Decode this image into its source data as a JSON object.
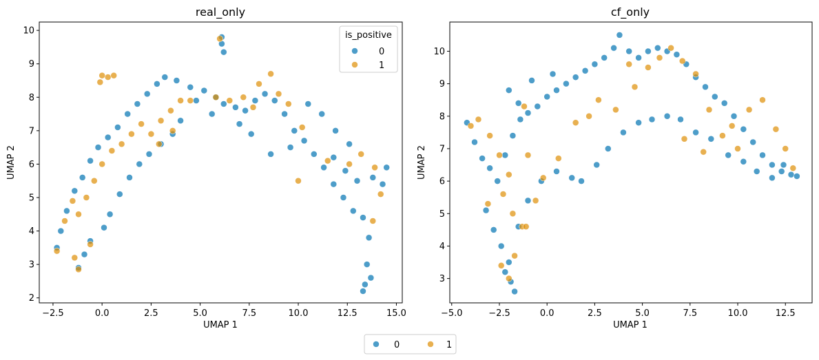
{
  "chart_data": [
    {
      "type": "scatter",
      "title": "real_only",
      "xlabel": "UMAP 1",
      "ylabel": "UMAP 2",
      "xlim": [
        -3.2,
        15.3
      ],
      "ylim": [
        1.85,
        10.25
      ],
      "xticks": [
        -2.5,
        0.0,
        2.5,
        5.0,
        7.5,
        10.0,
        12.5,
        15.0
      ],
      "xtick_labels": [
        "−2.5",
        "0.0",
        "2.5",
        "5.0",
        "7.5",
        "10.0",
        "12.5",
        "15.0"
      ],
      "yticks": [
        2,
        3,
        4,
        5,
        6,
        7,
        8,
        9,
        10
      ],
      "ytick_labels": [
        "2",
        "3",
        "4",
        "5",
        "6",
        "7",
        "8",
        "9",
        "10"
      ],
      "legend": {
        "title": "is_positive",
        "placement": "top-right",
        "entries": [
          "0",
          "1"
        ]
      },
      "series": [
        {
          "name": "0",
          "color": "#0173b2",
          "points": [
            [
              -2.3,
              3.5
            ],
            [
              -2.1,
              4.0
            ],
            [
              -1.8,
              4.6
            ],
            [
              -1.4,
              5.2
            ],
            [
              -1.0,
              5.6
            ],
            [
              -0.6,
              6.1
            ],
            [
              -0.2,
              6.5
            ],
            [
              0.3,
              6.8
            ],
            [
              0.8,
              7.1
            ],
            [
              1.3,
              7.5
            ],
            [
              1.8,
              7.8
            ],
            [
              2.3,
              8.1
            ],
            [
              2.8,
              8.4
            ],
            [
              3.2,
              8.6
            ],
            [
              3.8,
              8.5
            ],
            [
              4.5,
              8.3
            ],
            [
              5.2,
              8.2
            ],
            [
              5.8,
              8.0
            ],
            [
              6.2,
              7.8
            ],
            [
              6.8,
              7.7
            ],
            [
              7.3,
              7.6
            ],
            [
              7.8,
              7.9
            ],
            [
              8.3,
              8.1
            ],
            [
              8.8,
              7.9
            ],
            [
              9.3,
              7.5
            ],
            [
              9.8,
              7.0
            ],
            [
              10.3,
              6.7
            ],
            [
              10.8,
              6.3
            ],
            [
              11.3,
              5.9
            ],
            [
              11.8,
              5.4
            ],
            [
              12.3,
              5.0
            ],
            [
              12.8,
              4.6
            ],
            [
              13.3,
              4.4
            ],
            [
              13.6,
              3.8
            ],
            [
              13.5,
              3.0
            ],
            [
              13.4,
              2.4
            ],
            [
              13.3,
              2.2
            ],
            [
              13.7,
              2.6
            ],
            [
              6.1,
              9.8
            ],
            [
              6.1,
              9.6
            ],
            [
              6.2,
              9.35
            ],
            [
              -1.2,
              2.9
            ],
            [
              -0.9,
              3.3
            ],
            [
              -0.6,
              3.7
            ],
            [
              0.1,
              4.1
            ],
            [
              0.4,
              4.5
            ],
            [
              0.9,
              5.1
            ],
            [
              1.4,
              5.6
            ],
            [
              1.9,
              6.0
            ],
            [
              2.4,
              6.3
            ],
            [
              3.0,
              6.6
            ],
            [
              3.6,
              6.9
            ],
            [
              4.0,
              7.3
            ],
            [
              11.8,
              6.2
            ],
            [
              12.4,
              5.8
            ],
            [
              13.0,
              5.5
            ],
            [
              13.8,
              5.6
            ],
            [
              14.3,
              5.4
            ],
            [
              14.5,
              5.9
            ],
            [
              10.5,
              7.8
            ],
            [
              11.2,
              7.5
            ],
            [
              11.9,
              7.0
            ],
            [
              12.6,
              6.6
            ],
            [
              8.6,
              6.3
            ],
            [
              9.6,
              6.5
            ],
            [
              7.0,
              7.2
            ],
            [
              7.6,
              6.9
            ],
            [
              5.6,
              7.5
            ],
            [
              4.8,
              7.9
            ]
          ]
        },
        {
          "name": "1",
          "color": "#de8f05",
          "points": [
            [
              -2.3,
              3.4
            ],
            [
              -1.9,
              4.3
            ],
            [
              -1.5,
              4.9
            ],
            [
              -1.2,
              4.5
            ],
            [
              -0.8,
              5.0
            ],
            [
              -0.4,
              5.5
            ],
            [
              0.0,
              6.0
            ],
            [
              0.5,
              6.4
            ],
            [
              1.0,
              6.6
            ],
            [
              1.5,
              6.9
            ],
            [
              2.0,
              7.2
            ],
            [
              2.5,
              6.9
            ],
            [
              3.0,
              7.3
            ],
            [
              3.5,
              7.6
            ],
            [
              4.0,
              7.9
            ],
            [
              0.0,
              8.65
            ],
            [
              0.3,
              8.6
            ],
            [
              0.6,
              8.65
            ],
            [
              -0.1,
              8.45
            ],
            [
              6.0,
              9.75
            ],
            [
              5.8,
              8.0
            ],
            [
              6.5,
              7.9
            ],
            [
              7.2,
              8.0
            ],
            [
              8.0,
              8.4
            ],
            [
              8.6,
              8.7
            ],
            [
              9.0,
              8.1
            ],
            [
              10.2,
              7.1
            ],
            [
              10.0,
              5.5
            ],
            [
              11.5,
              6.1
            ],
            [
              12.6,
              6.0
            ],
            [
              13.2,
              6.3
            ],
            [
              13.9,
              5.9
            ],
            [
              14.2,
              5.1
            ],
            [
              13.8,
              4.3
            ],
            [
              -1.4,
              3.2
            ],
            [
              -1.2,
              2.85
            ],
            [
              -0.6,
              3.6
            ],
            [
              2.9,
              6.6
            ],
            [
              3.6,
              7.0
            ],
            [
              4.5,
              7.9
            ],
            [
              7.7,
              7.7
            ],
            [
              9.5,
              7.8
            ]
          ]
        }
      ]
    },
    {
      "type": "scatter",
      "title": "cf_only",
      "xlabel": "UMAP 1",
      "ylabel": "UMAP 2",
      "xlim": [
        -5.1,
        13.9
      ],
      "ylim": [
        2.25,
        10.9
      ],
      "xticks": [
        -5.0,
        -2.5,
        0.0,
        2.5,
        5.0,
        7.5,
        10.0,
        12.5
      ],
      "xtick_labels": [
        "−5.0",
        "−2.5",
        "0.0",
        "2.5",
        "5.0",
        "7.5",
        "10.0",
        "12.5"
      ],
      "yticks": [
        3,
        4,
        5,
        6,
        7,
        8,
        9,
        10
      ],
      "ytick_labels": [
        "3",
        "4",
        "5",
        "6",
        "7",
        "8",
        "9",
        "10"
      ],
      "series": [
        {
          "name": "0",
          "color": "#0173b2",
          "points": [
            [
              -4.2,
              7.8
            ],
            [
              -3.8,
              7.2
            ],
            [
              -3.4,
              6.7
            ],
            [
              -3.0,
              6.4
            ],
            [
              -2.6,
              6.0
            ],
            [
              -2.2,
              6.8
            ],
            [
              -1.8,
              7.4
            ],
            [
              -1.4,
              7.9
            ],
            [
              -1.0,
              8.1
            ],
            [
              -0.5,
              8.3
            ],
            [
              0.0,
              8.6
            ],
            [
              0.5,
              8.8
            ],
            [
              1.0,
              9.0
            ],
            [
              1.5,
              9.2
            ],
            [
              2.0,
              9.4
            ],
            [
              2.5,
              9.6
            ],
            [
              3.0,
              9.8
            ],
            [
              3.5,
              10.1
            ],
            [
              3.8,
              10.5
            ],
            [
              4.3,
              10.0
            ],
            [
              4.8,
              9.8
            ],
            [
              5.3,
              10.0
            ],
            [
              5.8,
              10.1
            ],
            [
              6.3,
              10.0
            ],
            [
              6.8,
              9.9
            ],
            [
              7.3,
              9.6
            ],
            [
              7.8,
              9.2
            ],
            [
              8.3,
              8.9
            ],
            [
              8.8,
              8.6
            ],
            [
              9.3,
              8.4
            ],
            [
              9.8,
              8.0
            ],
            [
              10.3,
              7.6
            ],
            [
              10.8,
              7.2
            ],
            [
              11.3,
              6.8
            ],
            [
              11.8,
              6.5
            ],
            [
              12.3,
              6.3
            ],
            [
              12.8,
              6.2
            ],
            [
              13.1,
              6.15
            ],
            [
              -3.2,
              5.1
            ],
            [
              -2.8,
              4.5
            ],
            [
              -2.4,
              4.0
            ],
            [
              -2.0,
              3.5
            ],
            [
              -1.9,
              2.9
            ],
            [
              -1.7,
              2.6
            ],
            [
              -2.2,
              3.2
            ],
            [
              -1.5,
              4.6
            ],
            [
              -1.0,
              5.4
            ],
            [
              -0.3,
              6.0
            ],
            [
              0.5,
              6.3
            ],
            [
              1.3,
              6.1
            ],
            [
              1.8,
              6.0
            ],
            [
              2.6,
              6.5
            ],
            [
              3.2,
              7.0
            ],
            [
              4.0,
              7.5
            ],
            [
              4.8,
              7.8
            ],
            [
              5.5,
              7.9
            ],
            [
              6.3,
              8.0
            ],
            [
              7.0,
              7.9
            ],
            [
              7.8,
              7.5
            ],
            [
              8.6,
              7.3
            ],
            [
              9.5,
              6.8
            ],
            [
              10.3,
              6.6
            ],
            [
              11.0,
              6.3
            ],
            [
              11.8,
              6.1
            ],
            [
              12.4,
              6.5
            ],
            [
              -2.0,
              8.8
            ],
            [
              -1.5,
              8.4
            ],
            [
              -0.8,
              9.1
            ],
            [
              0.3,
              9.3
            ]
          ]
        },
        {
          "name": "1",
          "color": "#de8f05",
          "points": [
            [
              -4.0,
              7.7
            ],
            [
              -3.6,
              7.9
            ],
            [
              -3.0,
              7.4
            ],
            [
              -2.5,
              6.8
            ],
            [
              -2.0,
              6.2
            ],
            [
              -2.3,
              5.6
            ],
            [
              -1.8,
              5.0
            ],
            [
              -1.3,
              4.6
            ],
            [
              -0.6,
              5.4
            ],
            [
              -0.2,
              6.1
            ],
            [
              -1.0,
              6.8
            ],
            [
              -1.2,
              8.3
            ],
            [
              0.6,
              6.7
            ],
            [
              1.5,
              7.8
            ],
            [
              2.2,
              8.0
            ],
            [
              2.7,
              8.5
            ],
            [
              3.6,
              8.2
            ],
            [
              4.3,
              9.6
            ],
            [
              5.3,
              9.5
            ],
            [
              5.9,
              9.8
            ],
            [
              6.5,
              10.1
            ],
            [
              7.1,
              9.7
            ],
            [
              7.8,
              9.3
            ],
            [
              8.5,
              8.2
            ],
            [
              9.2,
              7.4
            ],
            [
              10.0,
              7.0
            ],
            [
              10.6,
              8.2
            ],
            [
              11.3,
              8.5
            ],
            [
              12.0,
              7.6
            ],
            [
              12.5,
              7.0
            ],
            [
              12.9,
              6.4
            ],
            [
              -2.4,
              3.4
            ],
            [
              -2.0,
              3.0
            ],
            [
              -1.7,
              3.7
            ],
            [
              -3.1,
              5.3
            ],
            [
              -1.1,
              4.6
            ],
            [
              7.2,
              7.3
            ],
            [
              8.2,
              6.9
            ],
            [
              9.7,
              7.7
            ],
            [
              4.6,
              8.9
            ]
          ]
        }
      ]
    }
  ],
  "figure_legend": {
    "entries": [
      "0",
      "1"
    ],
    "colors": [
      "#0173b2",
      "#de8f05"
    ],
    "placement": "bottom-center"
  }
}
